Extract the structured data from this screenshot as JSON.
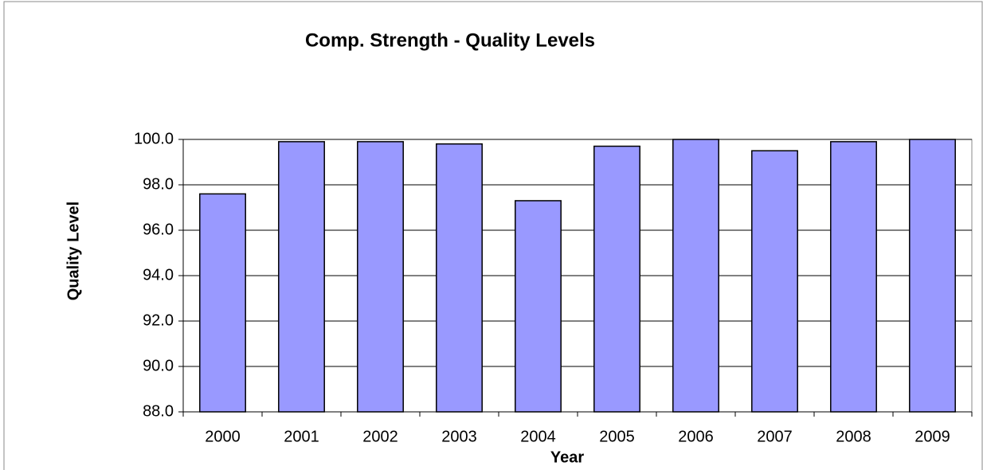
{
  "chart_data": {
    "type": "bar",
    "title": "Comp. Strength - Quality Levels",
    "x_label": "Year",
    "y_label": "Quality Level",
    "categories": [
      "2000",
      "2001",
      "2002",
      "2003",
      "2004",
      "2005",
      "2006",
      "2007",
      "2008",
      "2009"
    ],
    "values": [
      97.6,
      99.9,
      99.9,
      99.8,
      97.3,
      99.7,
      100.0,
      99.5,
      99.9,
      100.0
    ],
    "color": "#9999ff",
    "ylim": [
      88,
      100
    ],
    "yticks": [
      {
        "value": 88,
        "label": "88.0"
      },
      {
        "value": 90,
        "label": "90.0"
      },
      {
        "value": 92,
        "label": "92.0"
      },
      {
        "value": 94,
        "label": "94.0"
      },
      {
        "value": 96,
        "label": "96.0"
      },
      {
        "value": 98,
        "label": "98.0"
      },
      {
        "value": 100,
        "label": "100.0"
      }
    ],
    "grid": true
  }
}
